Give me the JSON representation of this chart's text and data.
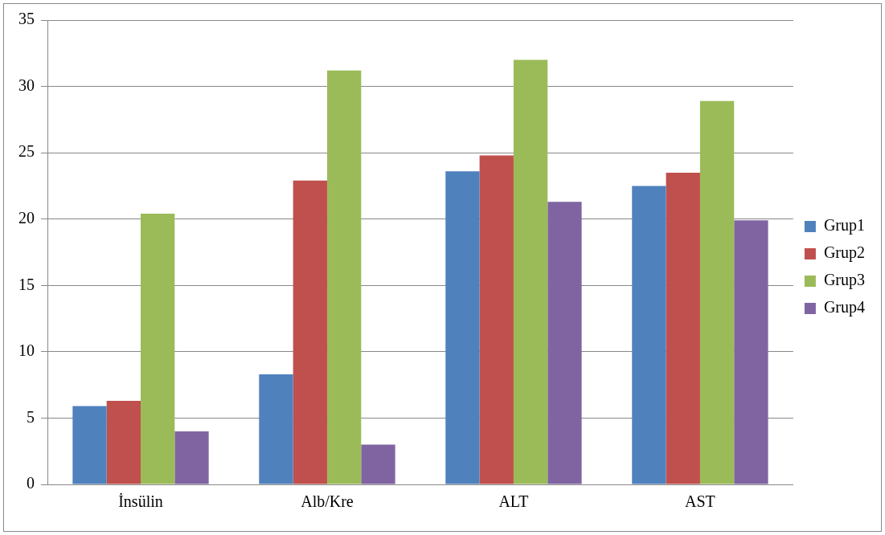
{
  "chart_data": {
    "type": "bar",
    "categories": [
      "İnsülin",
      "Alb/Kre",
      "ALT",
      "AST"
    ],
    "series": [
      {
        "name": "Grup1",
        "color": "#4f81bd",
        "values": [
          5.9,
          8.3,
          23.6,
          22.5
        ]
      },
      {
        "name": "Grup2",
        "color": "#c0504d",
        "values": [
          6.3,
          22.9,
          24.8,
          23.5
        ]
      },
      {
        "name": "Grup3",
        "color": "#9bbb59",
        "values": [
          20.4,
          31.2,
          32.0,
          28.9
        ]
      },
      {
        "name": "Grup4",
        "color": "#8064a2",
        "values": [
          4.0,
          3.0,
          21.3,
          19.9
        ]
      }
    ],
    "ylim": [
      0,
      35
    ],
    "yticks": [
      0,
      5,
      10,
      15,
      20,
      25,
      30,
      35
    ],
    "grid": "y",
    "legend": "right"
  }
}
